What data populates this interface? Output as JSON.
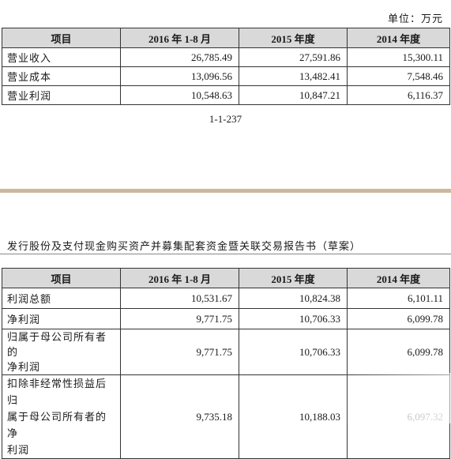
{
  "unit_label": "单位：万元",
  "table1": {
    "headers": [
      "项目",
      "2016 年 1-8 月",
      "2015 年度",
      "2014 年度"
    ],
    "rows": [
      {
        "label": "营业收入",
        "values": [
          "26,785.49",
          "27,591.86",
          "15,300.11"
        ]
      },
      {
        "label": "营业成本",
        "values": [
          "13,096.56",
          "13,482.41",
          "7,548.46"
        ]
      },
      {
        "label": "营业利润",
        "values": [
          "10,548.63",
          "10,847.21",
          "6,116.37"
        ]
      }
    ]
  },
  "page_number": "1-1-237",
  "document_header": "发行股份及支付现金购买资产并募集配套资金暨关联交易报告书（草案）",
  "table2": {
    "headers": [
      "项目",
      "2016 年 1-8 月",
      "2015 年度",
      "2014 年度"
    ],
    "rows": [
      {
        "label": "利润总额",
        "values": [
          "10,531.67",
          "10,824.38",
          "6,101.11"
        ]
      },
      {
        "label": "净利润",
        "values": [
          "9,771.75",
          "10,706.33",
          "6,099.78"
        ]
      },
      {
        "label_lines": [
          "归属于母公司所有者的",
          "净利润"
        ],
        "values": [
          "9,771.75",
          "10,706.33",
          "6,099.78"
        ]
      },
      {
        "label_lines": [
          "扣除非经常性损益后归",
          "属于母公司所有者的净",
          "利润"
        ],
        "values": [
          "9,735.18",
          "10,188.03",
          "6,097.32"
        ]
      }
    ]
  }
}
